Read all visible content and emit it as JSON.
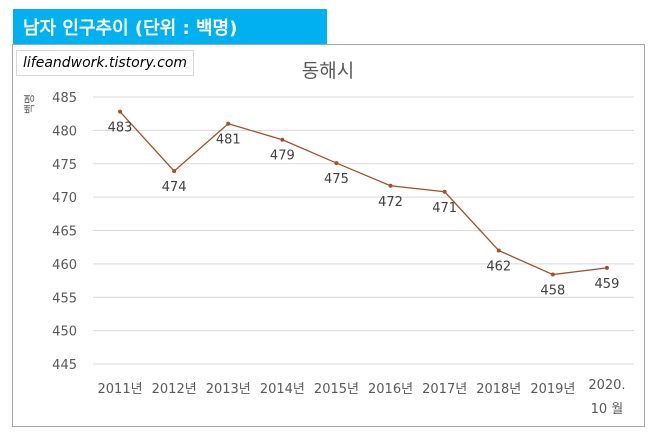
{
  "header": {
    "title": "남자 인구추이 (단위 : 백명)"
  },
  "watermark": {
    "text": "lifeandwork.tistory.com"
  },
  "colors": {
    "header_bg": "#00b0f0",
    "line": "#a0522d",
    "grid": "#d9d9d9"
  },
  "chart_data": {
    "type": "line",
    "title": "동해시",
    "ylabel": "백명",
    "categories": [
      "2011년",
      "2012년",
      "2013년",
      "2014년",
      "2015년",
      "2016년",
      "2017년",
      "2018년",
      "2019년",
      "2020. 10 월"
    ],
    "series": [
      {
        "values": [
          482.8,
          473.9,
          481.0,
          478.6,
          475.1,
          471.7,
          470.8,
          462.0,
          458.4,
          459.4
        ],
        "labels": [
          "483",
          "474",
          "481",
          "479",
          "475",
          "472",
          "471",
          "462",
          "458",
          "459"
        ]
      }
    ],
    "ylim": [
      445,
      485
    ],
    "yticks": [
      445,
      450,
      455,
      460,
      465,
      470,
      475,
      480,
      485
    ],
    "grid": true,
    "legend": "none"
  }
}
